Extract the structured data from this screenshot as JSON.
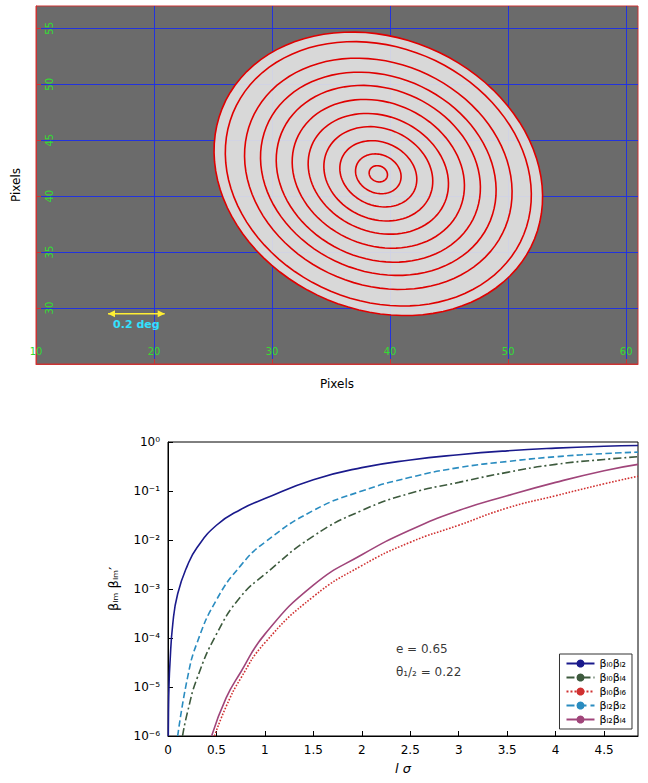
{
  "chart_data": [
    {
      "type": "contour",
      "x_label": "Pixels",
      "y_label": "Pixels",
      "xlim": [
        10,
        61
      ],
      "xticks": [
        10,
        20,
        30,
        40,
        50,
        60
      ],
      "ylim": [
        25,
        57
      ],
      "yticks": [
        30,
        35,
        40,
        45,
        50,
        55
      ],
      "grid": true,
      "color": "#e00000",
      "contours": {
        "center": [
          39.0,
          42.0
        ],
        "angle": -30,
        "semi_axes": [
          [
            14.5,
            12.0
          ],
          [
            13.5,
            11.2
          ],
          [
            11.8,
            9.8
          ],
          [
            10.4,
            8.6
          ],
          [
            9.0,
            7.5
          ],
          [
            7.6,
            6.3
          ],
          [
            6.2,
            5.1
          ],
          [
            4.8,
            4.0
          ],
          [
            3.4,
            2.8
          ],
          [
            2.0,
            1.7
          ],
          [
            0.8,
            0.7
          ]
        ]
      },
      "annotations": [
        {
          "text": "0.2 deg",
          "x": [
            16.1,
            20.9
          ],
          "y": 29.5
        }
      ]
    },
    {
      "type": "line",
      "x_label": "l σ",
      "y_label": "βₗₘ βₗₘ′",
      "log": "y",
      "xlim": [
        0,
        4.85
      ],
      "xticks": [
        0,
        0.5,
        1,
        1.5,
        2,
        2.5,
        3,
        3.5,
        4,
        4.5
      ],
      "ylim": [
        1e-06,
        1
      ],
      "yticks": [
        {
          "value": 1e-06,
          "label": "10⁻⁶"
        },
        {
          "value": 1e-05,
          "label": "10⁻⁵"
        },
        {
          "value": 0.0001,
          "label": "10⁻⁴"
        },
        {
          "value": 0.001,
          "label": "10⁻³"
        },
        {
          "value": 0.01,
          "label": "10⁻²"
        },
        {
          "value": 0.1,
          "label": "10⁻¹"
        },
        {
          "value": 1,
          "label": "10⁰"
        }
      ],
      "grid": false,
      "legend": "lower right",
      "annotations": [
        {
          "text": "e = 0.65",
          "x": 2.3,
          "y": 6e-05
        },
        {
          "text": "θ₁/₂ = 0.22",
          "x": 2.3,
          "y": 2e-05
        }
      ],
      "series": [
        {
          "name": "βₗ₀βₗ₂",
          "color": "#1a1a8c",
          "line_style": "solid",
          "x": [
            0.003,
            0.005,
            0.01,
            0.02,
            0.05,
            0.1,
            0.2,
            0.3,
            0.5,
            0.75,
            1,
            1.5,
            2,
            2.5,
            3,
            3.5,
            4,
            4.5,
            4.85
          ],
          "values": [
            1e-06,
            3e-06,
            1e-05,
            3e-05,
            0.0002,
            0.0008,
            0.003,
            0.007,
            0.02,
            0.042,
            0.07,
            0.17,
            0.3,
            0.43,
            0.55,
            0.66,
            0.75,
            0.82,
            0.85
          ]
        },
        {
          "name": "βₗ₀βₗ₄",
          "color": "#3d5a3d",
          "line_style": "dashdot",
          "x": [
            0.15,
            0.2,
            0.3,
            0.5,
            0.75,
            1,
            1.5,
            2,
            2.5,
            3,
            3.5,
            4,
            4.5,
            4.85
          ],
          "values": [
            1e-06,
            3e-06,
            1.5e-05,
            0.00012,
            0.0007,
            0.002,
            0.012,
            0.04,
            0.09,
            0.15,
            0.24,
            0.35,
            0.44,
            0.5
          ]
        },
        {
          "name": "βₗ₀βₗ₆",
          "color": "#d03030",
          "line_style": "dotted",
          "x": [
            0.48,
            0.6,
            0.75,
            1,
            1.5,
            2,
            2.5,
            3,
            3.5,
            4,
            4.5,
            4.85
          ],
          "values": [
            1e-06,
            4e-06,
            1.5e-05,
            8e-05,
            0.0007,
            0.003,
            0.009,
            0.02,
            0.045,
            0.08,
            0.14,
            0.2
          ]
        },
        {
          "name": "βₗ₂βₗ₂",
          "color": "#2a8cc0",
          "line_style": "dashed",
          "x": [
            0.1,
            0.2,
            0.3,
            0.5,
            0.75,
            1,
            1.5,
            2,
            2.5,
            3,
            3.5,
            4,
            4.5,
            4.85
          ],
          "values": [
            1e-06,
            1.5e-05,
            8e-05,
            0.0006,
            0.003,
            0.009,
            0.04,
            0.1,
            0.19,
            0.3,
            0.4,
            0.5,
            0.58,
            0.62
          ]
        },
        {
          "name": "βₗ₂βₗ₄",
          "color": "#a0457a",
          "line_style": "solid",
          "x": [
            0.45,
            0.6,
            0.75,
            1,
            1.5,
            2,
            2.5,
            3,
            3.5,
            4,
            4.5,
            4.85
          ],
          "values": [
            1e-06,
            6e-06,
            2e-05,
            0.00012,
            0.0012,
            0.005,
            0.016,
            0.04,
            0.08,
            0.15,
            0.26,
            0.35
          ]
        }
      ]
    }
  ]
}
